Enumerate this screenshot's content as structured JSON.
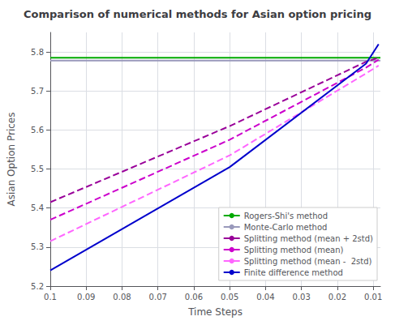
{
  "chart_data": {
    "type": "line",
    "title": "Comparison of numerical methods for Asian option pricing",
    "xlabel": "Time Steps",
    "ylabel": "Asian Option Prices",
    "series": [
      {
        "name": "Rogers-Shi's method",
        "type": "hline",
        "color": "#00aa00",
        "values": [
          5.785
        ],
        "line_style": "solid"
      },
      {
        "name": "Monte-Carlo method",
        "type": "hline",
        "color": "#9999bb",
        "values": [
          5.778
        ],
        "line_style": "solid"
      },
      {
        "name": "Splitting method (mean + 2std)",
        "type": "line",
        "color": "#990099",
        "x": [
          0.1,
          0.05,
          0.012,
          0.0085
        ],
        "values": [
          5.415,
          5.61,
          5.775,
          5.785
        ],
        "line_style": "dashed"
      },
      {
        "name": "Splitting method (mean)",
        "type": "line",
        "color": "#cc00cc",
        "x": [
          0.1,
          0.05,
          0.012,
          0.0085
        ],
        "values": [
          5.37,
          5.575,
          5.76,
          5.78
        ],
        "line_style": "dashed"
      },
      {
        "name": "Splitting method (mean -  2std)",
        "type": "line",
        "color": "#ff66ff",
        "x": [
          0.1,
          0.05,
          0.012,
          0.0085
        ],
        "values": [
          5.315,
          5.535,
          5.745,
          5.765
        ],
        "line_style": "dashed"
      },
      {
        "name": "Finite difference method",
        "type": "line",
        "color": "#0000cc",
        "x": [
          0.1,
          0.05,
          0.012,
          0.0085
        ],
        "values": [
          5.24,
          5.505,
          5.77,
          5.82
        ],
        "line_style": "solid"
      }
    ],
    "xlim": [
      0.1,
      0.008
    ],
    "ylim": [
      5.2,
      5.85
    ],
    "xticks": [
      0.1,
      0.09,
      0.08,
      0.07,
      0.06,
      0.05,
      0.04,
      0.03,
      0.02,
      0.01
    ],
    "yticks": [
      5.2,
      5.3,
      5.4,
      5.5,
      5.6,
      5.7,
      5.8
    ],
    "grid": true,
    "legend": "lower right"
  }
}
